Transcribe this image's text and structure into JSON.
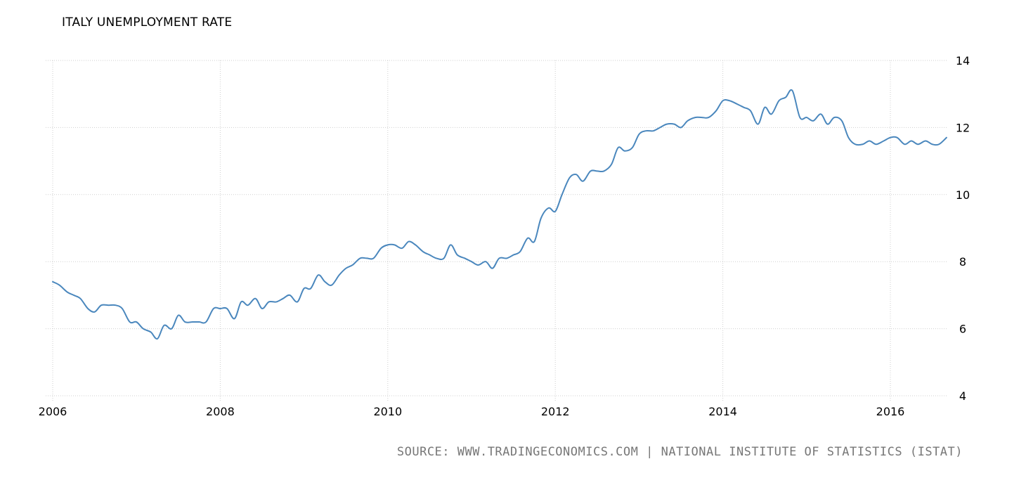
{
  "chart_data": {
    "type": "line",
    "title": "ITALY UNEMPLOYMENT RATE",
    "xlabel": "",
    "ylabel": "",
    "xlim": [
      2006.0,
      2016.667
    ],
    "ylim": [
      4,
      14
    ],
    "x_ticks": [
      "2006",
      "2008",
      "2010",
      "2012",
      "2014",
      "2016"
    ],
    "y_ticks": [
      "4",
      "6",
      "8",
      "10",
      "12",
      "14"
    ],
    "grid": true,
    "y_axis_position": "right",
    "series": [
      {
        "color": "#4a87bd",
        "points": [
          [
            2006.0,
            7.4
          ],
          [
            2006.08,
            7.3
          ],
          [
            2006.17,
            7.1
          ],
          [
            2006.25,
            7.0
          ],
          [
            2006.33,
            6.9
          ],
          [
            2006.42,
            6.6
          ],
          [
            2006.5,
            6.5
          ],
          [
            2006.58,
            6.7
          ],
          [
            2006.67,
            6.7
          ],
          [
            2006.75,
            6.7
          ],
          [
            2006.83,
            6.6
          ],
          [
            2006.92,
            6.2
          ],
          [
            2007.0,
            6.2
          ],
          [
            2007.08,
            6.0
          ],
          [
            2007.17,
            5.9
          ],
          [
            2007.25,
            5.7
          ],
          [
            2007.33,
            6.1
          ],
          [
            2007.42,
            6.0
          ],
          [
            2007.5,
            6.4
          ],
          [
            2007.58,
            6.2
          ],
          [
            2007.67,
            6.2
          ],
          [
            2007.75,
            6.2
          ],
          [
            2007.83,
            6.2
          ],
          [
            2007.92,
            6.6
          ],
          [
            2008.0,
            6.6
          ],
          [
            2008.08,
            6.6
          ],
          [
            2008.17,
            6.3
          ],
          [
            2008.25,
            6.8
          ],
          [
            2008.33,
            6.7
          ],
          [
            2008.42,
            6.9
          ],
          [
            2008.5,
            6.6
          ],
          [
            2008.58,
            6.8
          ],
          [
            2008.67,
            6.8
          ],
          [
            2008.75,
            6.9
          ],
          [
            2008.83,
            7.0
          ],
          [
            2008.92,
            6.8
          ],
          [
            2009.0,
            7.2
          ],
          [
            2009.08,
            7.2
          ],
          [
            2009.17,
            7.6
          ],
          [
            2009.25,
            7.4
          ],
          [
            2009.33,
            7.3
          ],
          [
            2009.42,
            7.6
          ],
          [
            2009.5,
            7.8
          ],
          [
            2009.58,
            7.9
          ],
          [
            2009.67,
            8.1
          ],
          [
            2009.75,
            8.1
          ],
          [
            2009.83,
            8.1
          ],
          [
            2009.92,
            8.4
          ],
          [
            2010.0,
            8.5
          ],
          [
            2010.08,
            8.5
          ],
          [
            2010.17,
            8.4
          ],
          [
            2010.25,
            8.6
          ],
          [
            2010.33,
            8.5
          ],
          [
            2010.42,
            8.3
          ],
          [
            2010.5,
            8.2
          ],
          [
            2010.58,
            8.1
          ],
          [
            2010.67,
            8.1
          ],
          [
            2010.75,
            8.5
          ],
          [
            2010.83,
            8.2
          ],
          [
            2010.92,
            8.1
          ],
          [
            2011.0,
            8.0
          ],
          [
            2011.08,
            7.9
          ],
          [
            2011.17,
            8.0
          ],
          [
            2011.25,
            7.8
          ],
          [
            2011.33,
            8.1
          ],
          [
            2011.42,
            8.1
          ],
          [
            2011.5,
            8.2
          ],
          [
            2011.58,
            8.3
          ],
          [
            2011.67,
            8.7
          ],
          [
            2011.75,
            8.6
          ],
          [
            2011.83,
            9.3
          ],
          [
            2011.92,
            9.6
          ],
          [
            2012.0,
            9.5
          ],
          [
            2012.08,
            10.0
          ],
          [
            2012.17,
            10.5
          ],
          [
            2012.25,
            10.6
          ],
          [
            2012.33,
            10.4
          ],
          [
            2012.42,
            10.7
          ],
          [
            2012.5,
            10.7
          ],
          [
            2012.58,
            10.7
          ],
          [
            2012.67,
            10.9
          ],
          [
            2012.75,
            11.4
          ],
          [
            2012.83,
            11.3
          ],
          [
            2012.92,
            11.4
          ],
          [
            2013.0,
            11.8
          ],
          [
            2013.08,
            11.9
          ],
          [
            2013.17,
            11.9
          ],
          [
            2013.25,
            12.0
          ],
          [
            2013.33,
            12.1
          ],
          [
            2013.42,
            12.1
          ],
          [
            2013.5,
            12.0
          ],
          [
            2013.58,
            12.2
          ],
          [
            2013.67,
            12.3
          ],
          [
            2013.75,
            12.3
          ],
          [
            2013.83,
            12.3
          ],
          [
            2013.92,
            12.5
          ],
          [
            2014.0,
            12.8
          ],
          [
            2014.08,
            12.8
          ],
          [
            2014.17,
            12.7
          ],
          [
            2014.25,
            12.6
          ],
          [
            2014.33,
            12.5
          ],
          [
            2014.42,
            12.1
          ],
          [
            2014.5,
            12.6
          ],
          [
            2014.58,
            12.4
          ],
          [
            2014.67,
            12.8
          ],
          [
            2014.75,
            12.9
          ],
          [
            2014.83,
            13.1
          ],
          [
            2014.92,
            12.3
          ],
          [
            2015.0,
            12.3
          ],
          [
            2015.08,
            12.2
          ],
          [
            2015.17,
            12.4
          ],
          [
            2015.25,
            12.1
          ],
          [
            2015.33,
            12.3
          ],
          [
            2015.42,
            12.2
          ],
          [
            2015.5,
            11.7
          ],
          [
            2015.58,
            11.5
          ],
          [
            2015.67,
            11.5
          ],
          [
            2015.75,
            11.6
          ],
          [
            2015.83,
            11.5
          ],
          [
            2015.92,
            11.6
          ],
          [
            2016.0,
            11.7
          ],
          [
            2016.08,
            11.7
          ],
          [
            2016.17,
            11.5
          ],
          [
            2016.25,
            11.6
          ],
          [
            2016.33,
            11.5
          ],
          [
            2016.42,
            11.6
          ],
          [
            2016.5,
            11.5
          ],
          [
            2016.58,
            11.5
          ],
          [
            2016.67,
            11.7
          ]
        ]
      }
    ],
    "source": "SOURCE: WWW.TRADINGECONOMICS.COM | NATIONAL INSTITUTE OF STATISTICS (ISTAT)"
  }
}
